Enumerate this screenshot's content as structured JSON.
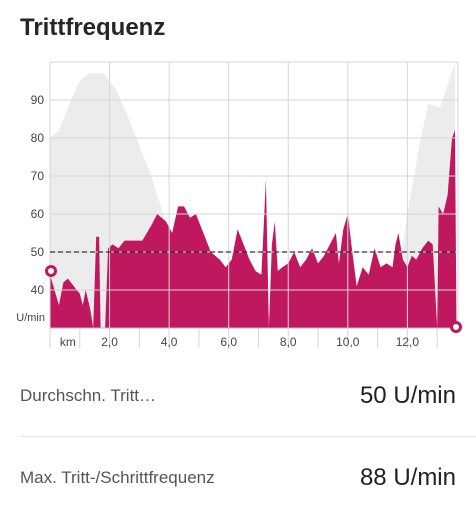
{
  "header": {
    "title": "Trittfrequenz"
  },
  "chart_data": {
    "type": "area",
    "y_unit_label": "U/min",
    "x_unit_label": "km",
    "x_ticks": [
      "2,0",
      "4,0",
      "6,0",
      "8,0",
      "10,0",
      "12,0"
    ],
    "y_ticks": [
      "40",
      "50",
      "60",
      "70",
      "80",
      "90"
    ],
    "ylim": [
      30,
      100
    ],
    "xlim": [
      0,
      13.7
    ],
    "average_line": 50,
    "colors": {
      "cadence": "#c0185e",
      "elevation": "#ececec",
      "grid": "#d6d6d6",
      "average": "#333333"
    },
    "elevation_series": [
      [
        0,
        80
      ],
      [
        0.3,
        82
      ],
      [
        0.6,
        88
      ],
      [
        1.0,
        95
      ],
      [
        1.3,
        97
      ],
      [
        1.8,
        97
      ],
      [
        2.2,
        93
      ],
      [
        2.6,
        86
      ],
      [
        3.0,
        78
      ],
      [
        3.4,
        70
      ],
      [
        3.8,
        60
      ],
      [
        4.2,
        50
      ],
      [
        4.6,
        44
      ],
      [
        5.0,
        40
      ],
      [
        5.4,
        37
      ],
      [
        5.8,
        35
      ],
      [
        6.5,
        33
      ],
      [
        7.5,
        33
      ],
      [
        8.5,
        33
      ],
      [
        9.5,
        33
      ],
      [
        10.5,
        33
      ],
      [
        11.5,
        34
      ],
      [
        12.0,
        60
      ],
      [
        12.4,
        78
      ],
      [
        12.7,
        89
      ],
      [
        13.1,
        88
      ],
      [
        13.4,
        95
      ],
      [
        13.6,
        100
      ]
    ],
    "cadence_series": [
      [
        0,
        44
      ],
      [
        0.15,
        40
      ],
      [
        0.3,
        36
      ],
      [
        0.45,
        42
      ],
      [
        0.6,
        43
      ],
      [
        0.8,
        41
      ],
      [
        1.0,
        39
      ],
      [
        1.1,
        36
      ],
      [
        1.2,
        40
      ],
      [
        1.35,
        35
      ],
      [
        1.45,
        30
      ],
      [
        1.55,
        54
      ],
      [
        1.65,
        54
      ],
      [
        1.7,
        30
      ],
      [
        1.85,
        30
      ],
      [
        1.95,
        51
      ],
      [
        2.1,
        52
      ],
      [
        2.3,
        51
      ],
      [
        2.5,
        53
      ],
      [
        2.8,
        53
      ],
      [
        3.1,
        53
      ],
      [
        3.4,
        57
      ],
      [
        3.6,
        60
      ],
      [
        3.9,
        58
      ],
      [
        4.1,
        55
      ],
      [
        4.3,
        62
      ],
      [
        4.5,
        62
      ],
      [
        4.7,
        59
      ],
      [
        4.9,
        60
      ],
      [
        5.1,
        56
      ],
      [
        5.4,
        50
      ],
      [
        5.7,
        48
      ],
      [
        5.9,
        46
      ],
      [
        6.1,
        48
      ],
      [
        6.3,
        56
      ],
      [
        6.5,
        52
      ],
      [
        6.7,
        48
      ],
      [
        6.9,
        45
      ],
      [
        7.1,
        44
      ],
      [
        7.25,
        69
      ],
      [
        7.35,
        30
      ],
      [
        7.45,
        52
      ],
      [
        7.55,
        58
      ],
      [
        7.65,
        45
      ],
      [
        7.8,
        46
      ],
      [
        8.0,
        47
      ],
      [
        8.2,
        50
      ],
      [
        8.4,
        46
      ],
      [
        8.6,
        48
      ],
      [
        8.8,
        51
      ],
      [
        9.0,
        47
      ],
      [
        9.2,
        49
      ],
      [
        9.4,
        52
      ],
      [
        9.6,
        55
      ],
      [
        9.7,
        47
      ],
      [
        9.85,
        56
      ],
      [
        10.0,
        60
      ],
      [
        10.15,
        50
      ],
      [
        10.3,
        41
      ],
      [
        10.5,
        46
      ],
      [
        10.7,
        44
      ],
      [
        10.9,
        51
      ],
      [
        11.1,
        46
      ],
      [
        11.3,
        47
      ],
      [
        11.5,
        46
      ],
      [
        11.6,
        52
      ],
      [
        11.7,
        55
      ],
      [
        11.85,
        48
      ],
      [
        12.0,
        46
      ],
      [
        12.15,
        49
      ],
      [
        12.3,
        48
      ],
      [
        12.5,
        51
      ],
      [
        12.7,
        53
      ],
      [
        12.85,
        52
      ],
      [
        13.0,
        30
      ],
      [
        13.05,
        62
      ],
      [
        13.2,
        60
      ],
      [
        13.35,
        65
      ],
      [
        13.5,
        80
      ],
      [
        13.6,
        82
      ],
      [
        13.65,
        30
      ]
    ]
  },
  "stats": [
    {
      "label": "Durchschn. Tritt…",
      "value": "50 U/min"
    },
    {
      "label": "Max. Tritt-/Schrittfrequenz",
      "value": "88 U/min"
    }
  ]
}
